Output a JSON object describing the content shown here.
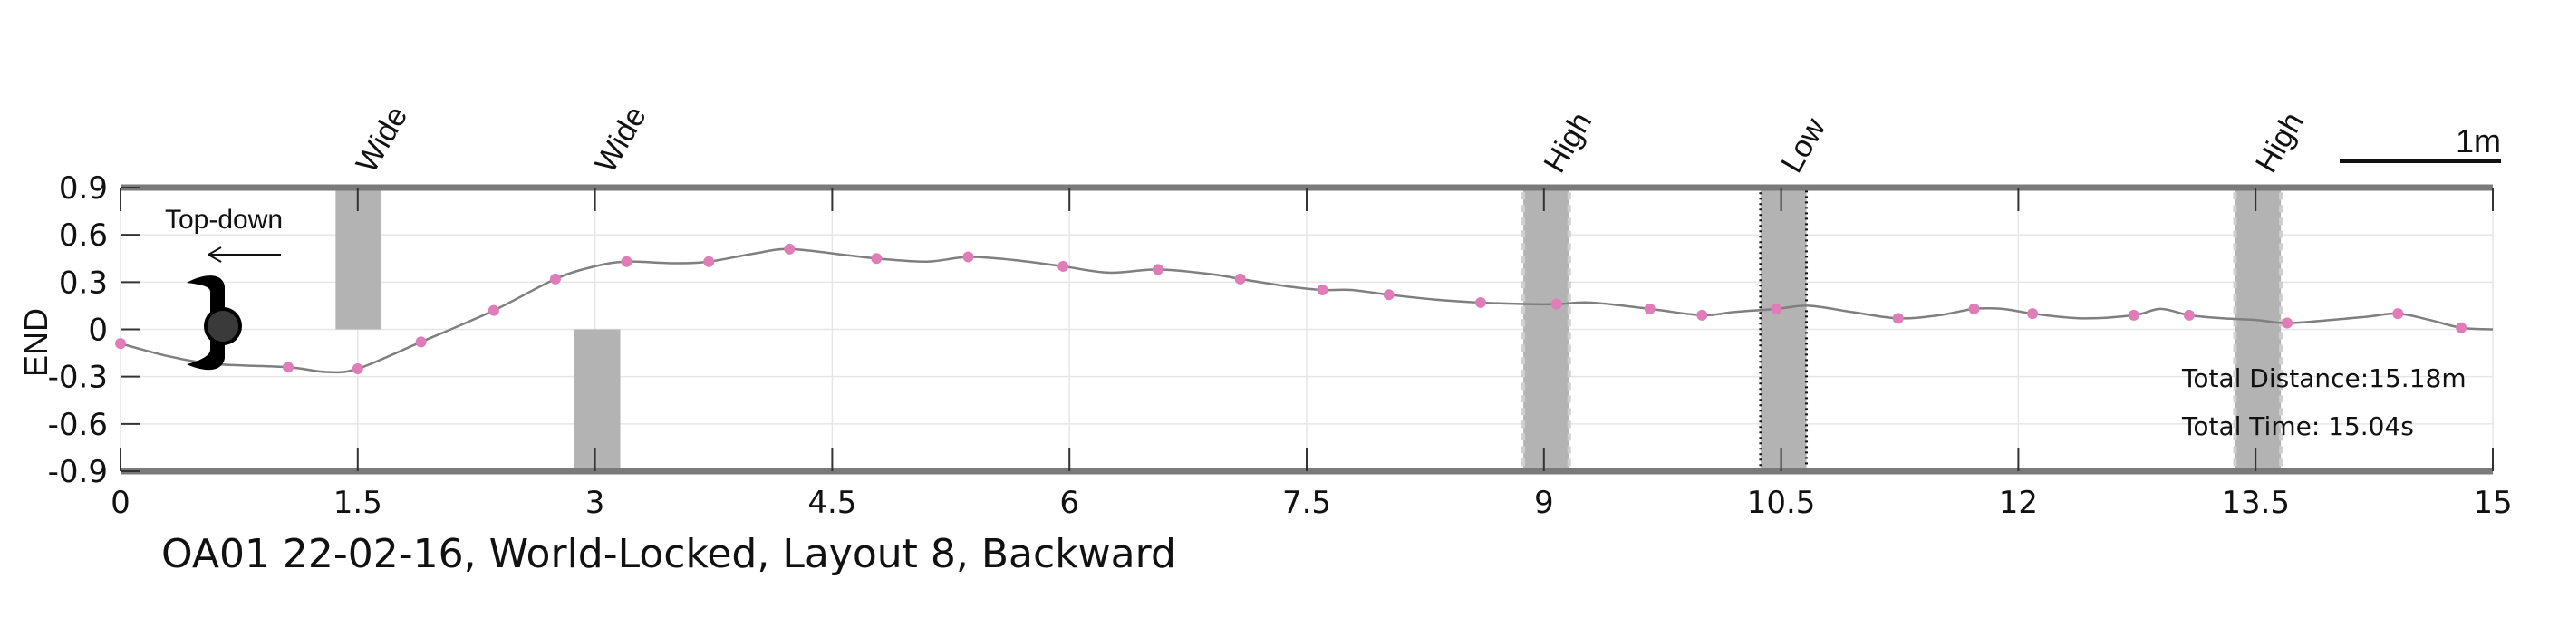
{
  "caption": "OA01 22-02-16, World-Locked, Layout 8, Backward",
  "chart_data": {
    "type": "line",
    "ylabel": "END",
    "xlim": [
      0,
      15
    ],
    "ylim": [
      -0.9,
      0.9
    ],
    "x_ticks": [
      "0",
      "1.5",
      "3",
      "4.5",
      "6",
      "7.5",
      "9",
      "10.5",
      "12",
      "13.5",
      "15"
    ],
    "y_ticks": [
      "0.9",
      "0.6",
      "0.3",
      "0",
      "-0.3",
      "-0.6",
      "-0.9"
    ],
    "grid": true,
    "series": [
      {
        "color": "#7f7f7f",
        "x": [
          0,
          0.3,
          0.6,
          1.06,
          1.3,
          1.5,
          1.9,
          2.36,
          2.75,
          3.0,
          3.2,
          3.5,
          3.72,
          4.0,
          4.23,
          4.6,
          4.78,
          5.1,
          5.36,
          5.65,
          5.96,
          6.25,
          6.56,
          6.9,
          7.08,
          7.4,
          7.6,
          7.78,
          8.02,
          8.3,
          8.6,
          8.9,
          9.08,
          9.3,
          9.67,
          10.0,
          10.2,
          10.47,
          10.67,
          10.95,
          11.24,
          11.5,
          11.72,
          11.9,
          12.09,
          12.4,
          12.73,
          12.9,
          13.08,
          13.3,
          13.5,
          13.7,
          13.98,
          14.2,
          14.4,
          14.6,
          14.8,
          15.0
        ],
        "y": [
          -0.09,
          -0.17,
          -0.22,
          -0.24,
          -0.27,
          -0.25,
          -0.08,
          0.12,
          0.32,
          0.4,
          0.43,
          0.42,
          0.43,
          0.48,
          0.51,
          0.47,
          0.45,
          0.43,
          0.46,
          0.44,
          0.4,
          0.36,
          0.38,
          0.35,
          0.32,
          0.27,
          0.25,
          0.25,
          0.22,
          0.19,
          0.17,
          0.16,
          0.16,
          0.17,
          0.13,
          0.09,
          0.11,
          0.13,
          0.15,
          0.11,
          0.07,
          0.09,
          0.13,
          0.13,
          0.1,
          0.07,
          0.09,
          0.13,
          0.09,
          0.07,
          0.06,
          0.04,
          0.06,
          0.08,
          0.1,
          0.06,
          0.01,
          0.0
        ]
      }
    ],
    "markers": {
      "color": "#e07db8",
      "x": [
        0,
        1.06,
        1.5,
        1.9,
        2.36,
        2.75,
        3.2,
        3.72,
        4.23,
        4.78,
        5.36,
        5.96,
        6.56,
        7.08,
        7.6,
        8.02,
        8.6,
        9.08,
        9.67,
        10.0,
        10.47,
        11.24,
        11.72,
        12.09,
        12.73,
        13.08,
        13.7,
        14.4,
        14.8
      ],
      "y": [
        -0.09,
        -0.24,
        -0.25,
        -0.08,
        0.12,
        0.32,
        0.43,
        0.43,
        0.51,
        0.45,
        0.46,
        0.4,
        0.38,
        0.32,
        0.25,
        0.22,
        0.17,
        0.16,
        0.13,
        0.09,
        0.13,
        0.07,
        0.13,
        0.1,
        0.09,
        0.09,
        0.04,
        0.1,
        0.01
      ]
    },
    "obstacles": [
      {
        "label": "Wide",
        "x_start": 1.36,
        "x_end": 1.65,
        "y_start": 0,
        "y_end": 0.9,
        "style": "solid"
      },
      {
        "label": "Wide",
        "x_start": 2.87,
        "x_end": 3.16,
        "y_start": -0.9,
        "y_end": 0,
        "style": "solid"
      },
      {
        "label": "High",
        "x_start": 8.87,
        "x_end": 9.16,
        "y_start": -0.9,
        "y_end": 0.9,
        "style": "dashed"
      },
      {
        "label": "Low",
        "x_start": 10.37,
        "x_end": 10.66,
        "y_start": -0.9,
        "y_end": 0.9,
        "style": "dotted"
      },
      {
        "label": "High",
        "x_start": 13.37,
        "x_end": 13.66,
        "y_start": -0.9,
        "y_end": 0.9,
        "style": "dashed"
      }
    ],
    "annotations": {
      "top_down_label": "Top-down",
      "scale_label": "1m",
      "total_distance": "Total Distance:15.18m",
      "total_time": "Total Time: 15.04s"
    }
  }
}
